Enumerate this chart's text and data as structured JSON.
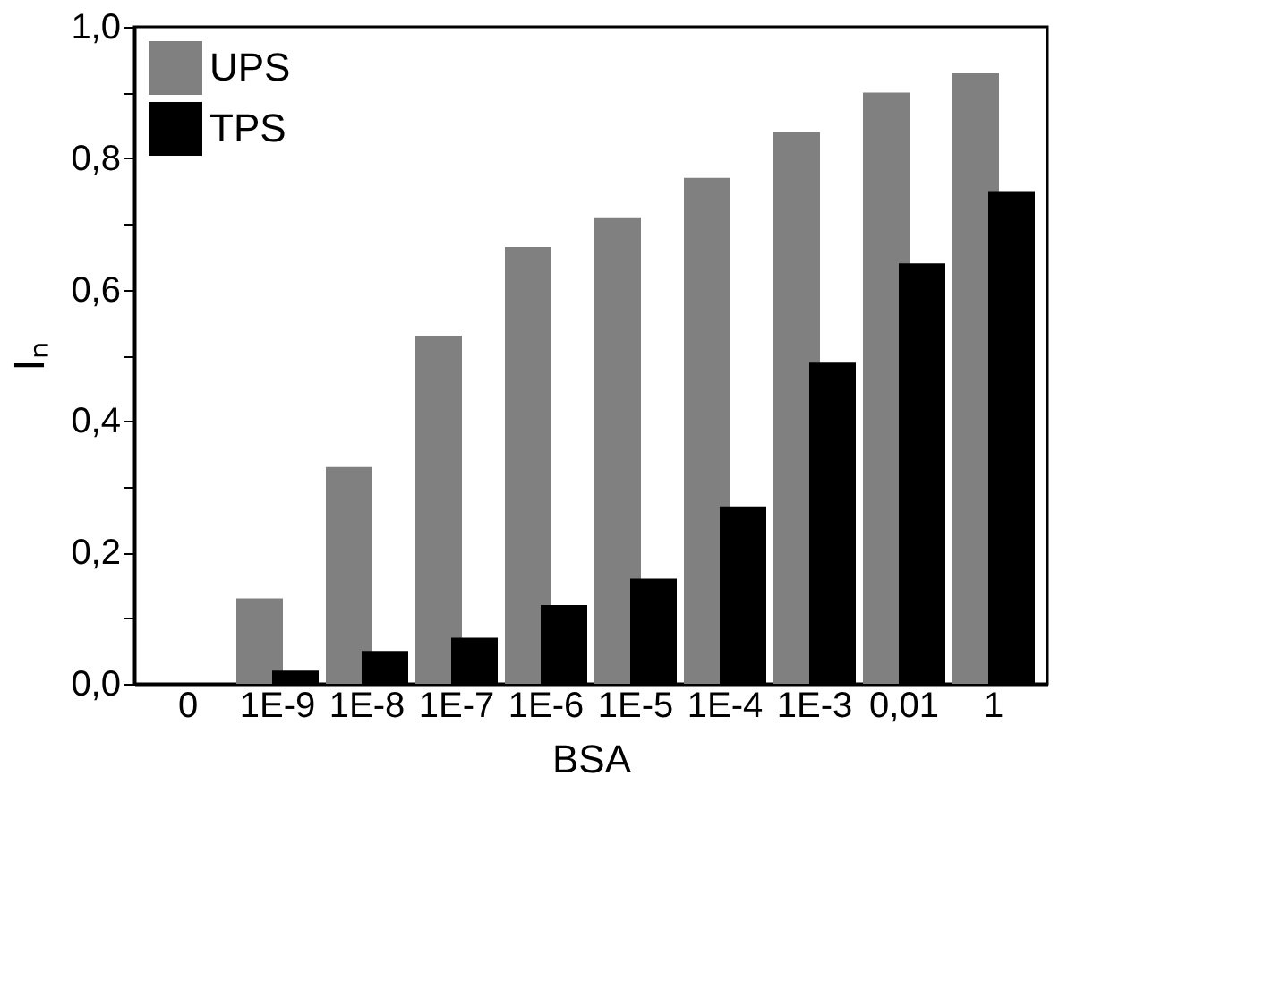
{
  "chart_data": {
    "type": "bar",
    "xlabel": "BSA",
    "ylabel": "Iₙ",
    "categories": [
      "0",
      "1E-9",
      "1E-8",
      "1E-7",
      "1E-6",
      "1E-5",
      "1E-4",
      "1E-3",
      "0,01",
      "1"
    ],
    "series": [
      {
        "name": "UPS",
        "color": "#808080",
        "values": [
          0,
          0.13,
          0.33,
          0.53,
          0.665,
          0.71,
          0.77,
          0.84,
          0.9,
          0.93
        ]
      },
      {
        "name": "TPS",
        "color": "#000000",
        "values": [
          0,
          0.02,
          0.05,
          0.07,
          0.12,
          0.16,
          0.27,
          0.49,
          0.64,
          0.75
        ]
      }
    ],
    "ylim": [
      0,
      1.0
    ],
    "yticks": [
      {
        "value": 0,
        "label": "0,0"
      },
      {
        "value": 0.1,
        "label": null
      },
      {
        "value": 0.2,
        "label": "0,2"
      },
      {
        "value": 0.3,
        "label": null
      },
      {
        "value": 0.4,
        "label": "0,4"
      },
      {
        "value": 0.5,
        "label": null
      },
      {
        "value": 0.6,
        "label": "0,6"
      },
      {
        "value": 0.7,
        "label": null
      },
      {
        "value": 0.8,
        "label": "0,8"
      },
      {
        "value": 0.9,
        "label": null
      },
      {
        "value": 1.0,
        "label": "1,0"
      }
    ],
    "grid": false,
    "legend": "top left"
  }
}
